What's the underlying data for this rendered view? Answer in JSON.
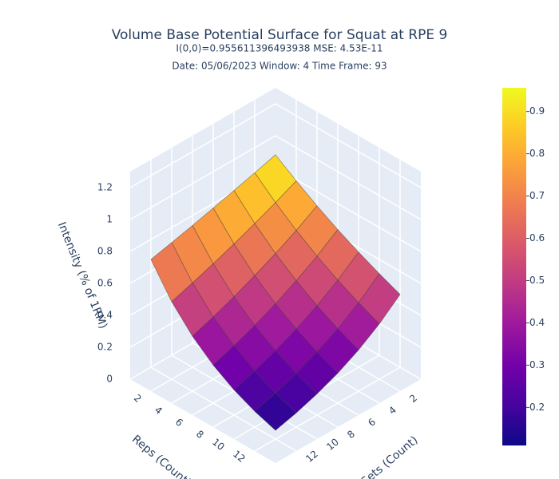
{
  "chart_data": {
    "type": "surface",
    "title": "Volume Base Potential Surface for Squat at RPE 9",
    "subtitle": [
      "I(0,0)=0.955611396493938  MSE: 4.53E-11",
      "Date: 05/06/2023  Window: 4  Time Frame: 93"
    ],
    "x_label": "Reps (Count)",
    "y_label": "Sets (Count)",
    "z_label": "Intensity (% of 1RM)",
    "x": [
      1,
      3,
      5,
      7,
      9,
      11,
      13
    ],
    "y": [
      1,
      3,
      5,
      7,
      9,
      11,
      13
    ],
    "z": [
      [
        0.956,
        0.918,
        0.882,
        0.847,
        0.813,
        0.781,
        0.75
      ],
      [
        0.867,
        0.806,
        0.75,
        0.697,
        0.648,
        0.603,
        0.56
      ],
      [
        0.786,
        0.707,
        0.637,
        0.574,
        0.516,
        0.465,
        0.419
      ],
      [
        0.712,
        0.621,
        0.542,
        0.472,
        0.411,
        0.359,
        0.313
      ],
      [
        0.646,
        0.545,
        0.46,
        0.389,
        0.328,
        0.276,
        0.233
      ],
      [
        0.586,
        0.479,
        0.391,
        0.32,
        0.261,
        0.213,
        0.174
      ],
      [
        0.531,
        0.421,
        0.333,
        0.263,
        0.208,
        0.164,
        0.13
      ]
    ],
    "xlim": [
      0,
      14
    ],
    "xticks": [
      2,
      4,
      6,
      8,
      10,
      12
    ],
    "ylim": [
      0,
      14
    ],
    "yticks": [
      2,
      4,
      6,
      8,
      10,
      12
    ],
    "zlim": [
      0,
      1.3
    ],
    "zticks": [
      0,
      0.2,
      0.4,
      0.6,
      0.8,
      1,
      1.2
    ],
    "colorscale": [
      "#0d0887",
      "#46039f",
      "#7201a8",
      "#9c179e",
      "#bd3786",
      "#d8576b",
      "#ed7953",
      "#fb9f3a",
      "#fdca26",
      "#f0f921"
    ],
    "colorbar": {
      "range": [
        0.11,
        0.956
      ],
      "ticks": [
        0.2,
        0.3,
        0.4,
        0.5,
        0.6,
        0.7,
        0.8,
        0.9
      ]
    },
    "grid": true
  }
}
